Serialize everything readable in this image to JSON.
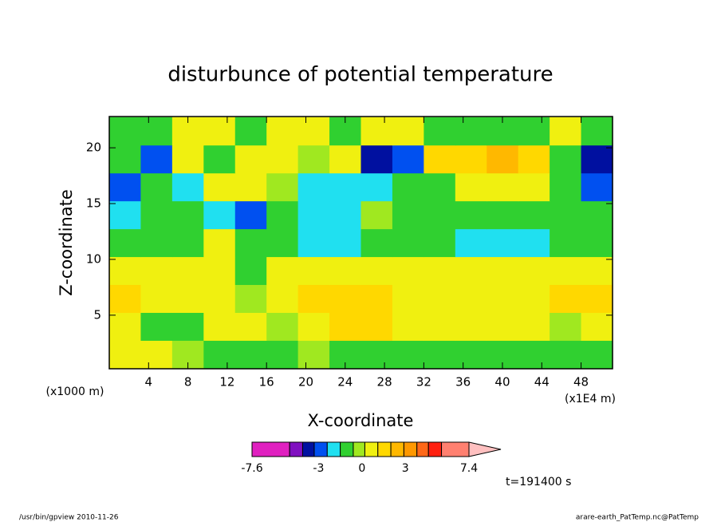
{
  "chart_data": {
    "type": "contour",
    "title": "disturbunce of potential temperature",
    "xlabel": "X-coordinate",
    "ylabel": "Z-coordinate",
    "xunit": "(x1E4 m)",
    "yunit": "(x1000 m)",
    "x": [
      1.6,
      4.8,
      8,
      11.2,
      14.4,
      17.6,
      20.8,
      24,
      27.2,
      30.4,
      33.6,
      36.8,
      40,
      43.2,
      46.4,
      49.6
    ],
    "y": [
      1.5,
      4,
      6.5,
      9,
      11.5,
      14,
      16.5,
      19,
      21.5
    ],
    "z": [
      [
        0.6,
        0.6,
        -0.2,
        -1,
        -1,
        -1,
        -0.2,
        -1,
        -1,
        -1,
        -1,
        -1,
        -1,
        -1,
        -1,
        -1
      ],
      [
        0.6,
        -1,
        -1,
        0.6,
        0.6,
        -0.2,
        0.6,
        1.5,
        1.5,
        0.6,
        0.6,
        0.6,
        0.6,
        0.6,
        -0.2,
        0.6
      ],
      [
        1.5,
        0.6,
        0.6,
        0.6,
        -0.2,
        0.6,
        1.5,
        1.5,
        1.5,
        0.6,
        0.6,
        0.6,
        0.6,
        0.6,
        1.5,
        1.5
      ],
      [
        0.6,
        0.6,
        0.6,
        0.6,
        -1,
        0.6,
        0.6,
        0.6,
        0.6,
        0.6,
        0.6,
        0.6,
        0.6,
        0.6,
        0.6,
        0.6
      ],
      [
        -1,
        -1,
        -1,
        0.6,
        -1,
        -1,
        -2,
        -2,
        -1,
        -1,
        -1,
        -2,
        -2,
        -2,
        -1,
        -1
      ],
      [
        -2,
        -1,
        -1,
        -2,
        -3,
        -1,
        -2,
        -2,
        -0.2,
        -1,
        -1,
        -1,
        -1,
        -1,
        -1,
        -1
      ],
      [
        -3,
        -1,
        -2,
        0.6,
        0.6,
        -0.2,
        -2,
        -2,
        -2,
        -1,
        -1,
        0.6,
        0.6,
        0.6,
        -1,
        -3
      ],
      [
        -1,
        -3,
        0.6,
        -1,
        0.6,
        0.6,
        -0.2,
        0.6,
        -3.7,
        -3,
        1.5,
        1.5,
        2.5,
        1.5,
        -1,
        -3.7
      ],
      [
        -1,
        -1,
        0.6,
        0.6,
        -1,
        0.6,
        0.6,
        -1,
        0.6,
        0.6,
        -1,
        -1,
        -1,
        -1,
        0.6,
        -1
      ]
    ],
    "xlim": [
      0,
      51.2
    ],
    "ylim": [
      0.2,
      22.8
    ],
    "xticks": [
      4,
      8,
      12,
      16,
      20,
      24,
      28,
      32,
      36,
      40,
      44,
      48
    ],
    "yticks": [
      5,
      10,
      15,
      20
    ],
    "colorbar": {
      "levels": [
        -7.6,
        -5,
        -4.1,
        -3.3,
        -2.4,
        -1.5,
        -0.6,
        0.2,
        1.1,
        2,
        2.9,
        3.8,
        4.6,
        5.5,
        7.4
      ],
      "colors": [
        "#e020c0",
        "#8010c0",
        "#0010a0",
        "#0050f0",
        "#20e0f0",
        "#30d030",
        "#a0e820",
        "#f0f010",
        "#ffd800",
        "#ffb800",
        "#ff9800",
        "#ff6818",
        "#ff2010",
        "#ff8070"
      ],
      "extend_color": "#ffc0c0",
      "ticks": [
        -7.6,
        -3,
        0,
        3,
        7.4
      ]
    },
    "annotation": "t=191400 s",
    "footer_left": "/usr/bin/gpview   2010-11-26",
    "footer_right": "arare-earth_PatTemp.nc@PatTemp"
  }
}
